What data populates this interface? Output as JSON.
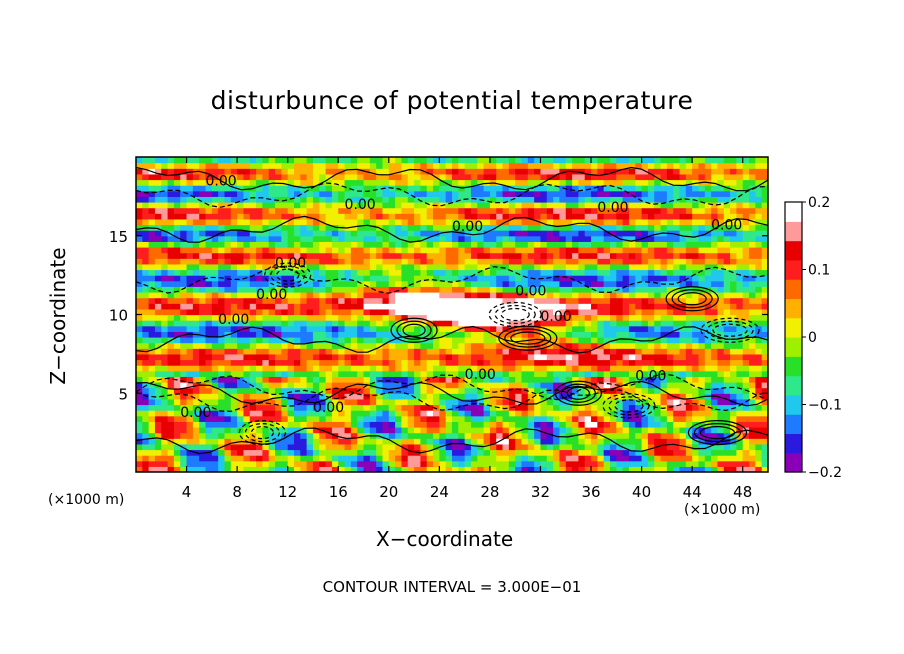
{
  "chart_data": {
    "type": "heatmap",
    "title": "disturbunce of potential temperature",
    "xlabel": "X−coordinate",
    "ylabel": "Z−coordinate",
    "x_unit_left": "(×1000 m)",
    "x_unit_right": "(×1000 m)",
    "xlim": [
      0,
      50
    ],
    "ylim": [
      0,
      20
    ],
    "x_ticks": [
      "4",
      "8",
      "12",
      "16",
      "20",
      "24",
      "28",
      "32",
      "36",
      "40",
      "44",
      "48"
    ],
    "y_ticks": [
      "5",
      "10",
      "15"
    ],
    "colorbar": {
      "range": [
        -0.2,
        0.2
      ],
      "tick_labels": [
        "0.2",
        "0.1",
        "0",
        "−0.1",
        "−0.2"
      ],
      "colors": [
        "#8a00b8",
        "#2a1ae0",
        "#1e7bff",
        "#20c8ee",
        "#2ee88a",
        "#28e028",
        "#9ef000",
        "#f0f000",
        "#ffb000",
        "#ff6a00",
        "#ff1e1e",
        "#e80000",
        "#ff9a9a",
        "#ffffff"
      ]
    },
    "contour_labels": [
      "0.00",
      "0.00",
      "0.00",
      "0.00",
      "0.00",
      "0.00",
      "0.00",
      "0.00",
      "0.00",
      "0.00",
      "0.00",
      "0.00",
      "0.00",
      "0.00"
    ],
    "footnote": "CONTOUR INTERVAL = 3.000E−01"
  }
}
